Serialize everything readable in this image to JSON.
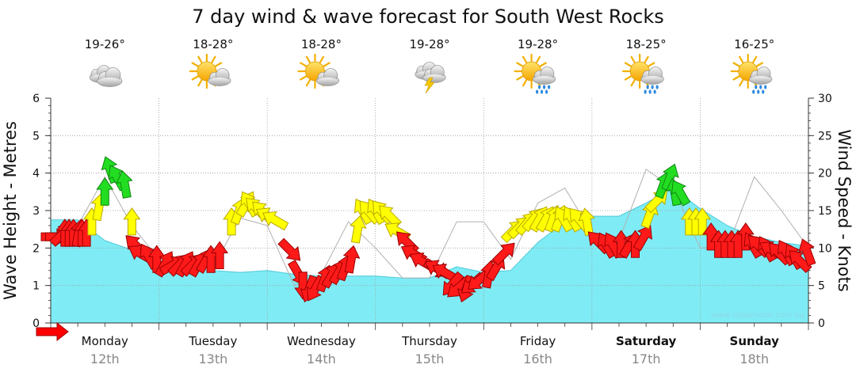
{
  "chart_data": {
    "type": "area",
    "title": "7 day wind & wave forecast for South West Rocks",
    "ylabel": "Wave Height - Metres",
    "y2label": "Wind Speed - Knots",
    "ylim": [
      0,
      6
    ],
    "y2lim": [
      0,
      30
    ],
    "y_ticks": [
      "0",
      "1",
      "2",
      "3",
      "4",
      "5",
      "6"
    ],
    "y2_ticks": [
      "0",
      "5",
      "10",
      "15",
      "20",
      "25",
      "30"
    ],
    "grid": true,
    "days": [
      {
        "day": "Monday",
        "date": "12th",
        "temp": "19-26°",
        "icon": "cloudy-icon",
        "bold": false
      },
      {
        "day": "Tuesday",
        "date": "13th",
        "temp": "18-28°",
        "icon": "sun-cloud-icon",
        "bold": false
      },
      {
        "day": "Wednesday",
        "date": "14th",
        "temp": "18-28°",
        "icon": "sun-cloud-icon",
        "bold": false
      },
      {
        "day": "Thursday",
        "date": "15th",
        "temp": "19-28°",
        "icon": "storm-icon",
        "bold": false
      },
      {
        "day": "Friday",
        "date": "16th",
        "temp": "19-28°",
        "icon": "sun-rain-icon",
        "bold": false
      },
      {
        "day": "Saturday",
        "date": "17th",
        "temp": "18-25°",
        "icon": "sun-rain-icon",
        "bold": true
      },
      {
        "day": "Sunday",
        "date": "18th",
        "temp": "16-25°",
        "icon": "sun-rain-icon",
        "bold": true
      }
    ],
    "series": [
      {
        "name": "Wave Height",
        "color": "#7fecf5",
        "axis": "left",
        "x": [
          0,
          0.25,
          0.5,
          0.75,
          1,
          1.25,
          1.5,
          1.75,
          2,
          2.25,
          2.5,
          2.75,
          3,
          3.25,
          3.5,
          3.75,
          4,
          4.25,
          4.5,
          4.75,
          5,
          5.25,
          5.5,
          5.75,
          6,
          6.25,
          6.5,
          6.75,
          7
        ],
        "values": [
          2.75,
          2.75,
          2.2,
          1.95,
          1.55,
          1.45,
          1.4,
          1.35,
          1.4,
          1.3,
          1.25,
          1.25,
          1.25,
          1.2,
          1.2,
          1.5,
          1.35,
          1.4,
          2.15,
          2.7,
          2.85,
          2.85,
          3.2,
          3.6,
          3.05,
          2.6,
          2.3,
          2.15,
          2.05
        ]
      },
      {
        "name": "Wind Speed",
        "color": "#b0b0b0",
        "axis": "right",
        "x": [
          0,
          0.25,
          0.5,
          0.75,
          1,
          1.25,
          1.5,
          1.75,
          2,
          2.25,
          2.5,
          2.75,
          3,
          3.25,
          3.5,
          3.75,
          4,
          4.25,
          4.5,
          4.75,
          5,
          5.25,
          5.5,
          5.75,
          6,
          6.25,
          6.5,
          6.75,
          7
        ],
        "values": [
          10.5,
          13,
          19.5,
          13,
          8.5,
          7,
          7.5,
          14,
          13,
          5,
          6.5,
          13.5,
          10,
          6,
          6,
          13.5,
          13.5,
          8.5,
          16,
          18,
          12,
          11,
          20.5,
          18,
          10,
          10,
          19.5,
          15,
          10
        ]
      }
    ],
    "wind_arrows": [
      {
        "x": 0.0,
        "speed": 11.5,
        "dir": 90
      },
      {
        "x": 0.04,
        "speed": 11.5,
        "dir": 90
      },
      {
        "x": 0.08,
        "speed": 11.5,
        "dir": 45
      },
      {
        "x": 0.13,
        "speed": 11.5,
        "dir": 0
      },
      {
        "x": 0.17,
        "speed": 11.5,
        "dir": 0
      },
      {
        "x": 0.21,
        "speed": 11.5,
        "dir": 0
      },
      {
        "x": 0.25,
        "speed": 11.5,
        "dir": 10
      },
      {
        "x": 0.29,
        "speed": 11.5,
        "dir": 0
      },
      {
        "x": 0.33,
        "speed": 11.5,
        "dir": 0
      },
      {
        "x": 0.38,
        "speed": 13,
        "dir": 0
      },
      {
        "x": 0.44,
        "speed": 15,
        "dir": 10
      },
      {
        "x": 0.5,
        "speed": 17,
        "dir": 0
      },
      {
        "x": 0.56,
        "speed": 20,
        "dir": 340
      },
      {
        "x": 0.63,
        "speed": 19,
        "dir": 330
      },
      {
        "x": 0.69,
        "speed": 18,
        "dir": 350
      },
      {
        "x": 0.75,
        "speed": 13,
        "dir": 0
      },
      {
        "x": 0.81,
        "speed": 10,
        "dir": 315
      },
      {
        "x": 0.86,
        "speed": 9,
        "dir": 300
      },
      {
        "x": 0.92,
        "speed": 8.5,
        "dir": 330
      },
      {
        "x": 0.98,
        "speed": 8,
        "dir": 0
      },
      {
        "x": 1.04,
        "speed": 7.5,
        "dir": 30
      },
      {
        "x": 1.1,
        "speed": 7.5,
        "dir": 60
      },
      {
        "x": 1.17,
        "speed": 7.5,
        "dir": 45
      },
      {
        "x": 1.23,
        "speed": 7.5,
        "dir": 30
      },
      {
        "x": 1.29,
        "speed": 7.5,
        "dir": 45
      },
      {
        "x": 1.35,
        "speed": 7.5,
        "dir": 30
      },
      {
        "x": 1.42,
        "speed": 8,
        "dir": 30
      },
      {
        "x": 1.48,
        "speed": 8,
        "dir": 0
      },
      {
        "x": 1.56,
        "speed": 8.5,
        "dir": 0
      },
      {
        "x": 1.67,
        "speed": 13,
        "dir": 0
      },
      {
        "x": 1.73,
        "speed": 14.5,
        "dir": 20
      },
      {
        "x": 1.79,
        "speed": 15.5,
        "dir": 30
      },
      {
        "x": 1.85,
        "speed": 15.5,
        "dir": 330
      },
      {
        "x": 1.92,
        "speed": 15,
        "dir": 315
      },
      {
        "x": 1.98,
        "speed": 14.5,
        "dir": 315
      },
      {
        "x": 2.04,
        "speed": 14,
        "dir": 300
      },
      {
        "x": 2.1,
        "speed": 13.5,
        "dir": 300
      },
      {
        "x": 2.19,
        "speed": 10,
        "dir": 135
      },
      {
        "x": 2.27,
        "speed": 7,
        "dir": 150
      },
      {
        "x": 2.33,
        "speed": 5.5,
        "dir": 180
      },
      {
        "x": 2.4,
        "speed": 5,
        "dir": 200
      },
      {
        "x": 2.46,
        "speed": 5,
        "dir": 210
      },
      {
        "x": 2.52,
        "speed": 5.5,
        "dir": 20
      },
      {
        "x": 2.58,
        "speed": 6,
        "dir": 30
      },
      {
        "x": 2.65,
        "speed": 6.5,
        "dir": 30
      },
      {
        "x": 2.71,
        "speed": 7,
        "dir": 20
      },
      {
        "x": 2.77,
        "speed": 8,
        "dir": 10
      },
      {
        "x": 2.83,
        "speed": 12,
        "dir": 10
      },
      {
        "x": 2.9,
        "speed": 14.5,
        "dir": 330
      },
      {
        "x": 2.96,
        "speed": 14.5,
        "dir": 320
      },
      {
        "x": 3.02,
        "speed": 14.5,
        "dir": 330
      },
      {
        "x": 3.08,
        "speed": 14.5,
        "dir": 320
      },
      {
        "x": 3.15,
        "speed": 14,
        "dir": 315
      },
      {
        "x": 3.23,
        "speed": 12,
        "dir": 300
      },
      {
        "x": 3.31,
        "speed": 10.5,
        "dir": 315
      },
      {
        "x": 3.38,
        "speed": 9,
        "dir": 300
      },
      {
        "x": 3.46,
        "speed": 8,
        "dir": 300
      },
      {
        "x": 3.54,
        "speed": 7.5,
        "dir": 120
      },
      {
        "x": 3.6,
        "speed": 7,
        "dir": 300
      },
      {
        "x": 3.67,
        "speed": 6.5,
        "dir": 300
      },
      {
        "x": 3.73,
        "speed": 5.5,
        "dir": 220
      },
      {
        "x": 3.79,
        "speed": 5,
        "dir": 230
      },
      {
        "x": 3.85,
        "speed": 5,
        "dir": 200
      },
      {
        "x": 3.92,
        "speed": 5.5,
        "dir": 230
      },
      {
        "x": 3.98,
        "speed": 6,
        "dir": 230
      },
      {
        "x": 4.04,
        "speed": 6,
        "dir": 10
      },
      {
        "x": 4.1,
        "speed": 7,
        "dir": 30
      },
      {
        "x": 4.17,
        "speed": 9,
        "dir": 45
      },
      {
        "x": 4.25,
        "speed": 12,
        "dir": 45
      },
      {
        "x": 4.31,
        "speed": 12.5,
        "dir": 45
      },
      {
        "x": 4.38,
        "speed": 13,
        "dir": 40
      },
      {
        "x": 4.44,
        "speed": 13.5,
        "dir": 40
      },
      {
        "x": 4.5,
        "speed": 13.5,
        "dir": 30
      },
      {
        "x": 4.56,
        "speed": 13.5,
        "dir": 30
      },
      {
        "x": 4.63,
        "speed": 13.5,
        "dir": 20
      },
      {
        "x": 4.69,
        "speed": 13.5,
        "dir": 20
      },
      {
        "x": 4.75,
        "speed": 13.5,
        "dir": 330
      },
      {
        "x": 4.83,
        "speed": 13.5,
        "dir": 330
      },
      {
        "x": 4.9,
        "speed": 13.5,
        "dir": 320
      },
      {
        "x": 4.96,
        "speed": 13,
        "dir": 350
      },
      {
        "x": 5.08,
        "speed": 10.5,
        "dir": 315
      },
      {
        "x": 5.15,
        "speed": 10,
        "dir": 330
      },
      {
        "x": 5.21,
        "speed": 10,
        "dir": 330
      },
      {
        "x": 5.27,
        "speed": 10,
        "dir": 0
      },
      {
        "x": 5.33,
        "speed": 10,
        "dir": 30
      },
      {
        "x": 5.4,
        "speed": 10,
        "dir": 0
      },
      {
        "x": 5.46,
        "speed": 11,
        "dir": 30
      },
      {
        "x": 5.52,
        "speed": 14,
        "dir": 20
      },
      {
        "x": 5.58,
        "speed": 16,
        "dir": 45
      },
      {
        "x": 5.65,
        "speed": 18,
        "dir": 20
      },
      {
        "x": 5.71,
        "speed": 19,
        "dir": 20
      },
      {
        "x": 5.77,
        "speed": 17,
        "dir": 350
      },
      {
        "x": 5.83,
        "speed": 17,
        "dir": 330
      },
      {
        "x": 5.9,
        "speed": 13,
        "dir": 0
      },
      {
        "x": 5.96,
        "speed": 13,
        "dir": 0
      },
      {
        "x": 6.02,
        "speed": 13,
        "dir": 0
      },
      {
        "x": 6.1,
        "speed": 11,
        "dir": 0
      },
      {
        "x": 6.17,
        "speed": 10,
        "dir": 0
      },
      {
        "x": 6.23,
        "speed": 10,
        "dir": 0
      },
      {
        "x": 6.29,
        "speed": 10,
        "dir": 0
      },
      {
        "x": 6.35,
        "speed": 10,
        "dir": 0
      },
      {
        "x": 6.42,
        "speed": 11,
        "dir": 0
      },
      {
        "x": 6.5,
        "speed": 10,
        "dir": 330
      },
      {
        "x": 6.56,
        "speed": 10,
        "dir": 315
      },
      {
        "x": 6.63,
        "speed": 9.5,
        "dir": 330
      },
      {
        "x": 6.69,
        "speed": 9.5,
        "dir": 300
      },
      {
        "x": 6.75,
        "speed": 9,
        "dir": 315
      },
      {
        "x": 6.81,
        "speed": 9,
        "dir": 330
      },
      {
        "x": 6.88,
        "speed": 8.5,
        "dir": 330
      },
      {
        "x": 6.94,
        "speed": 8,
        "dir": 315
      },
      {
        "x": 7.0,
        "speed": 9,
        "dir": 340
      }
    ],
    "wind_arrows_note": "",
    "watermark": "www.seabreeze.com.au",
    "legend_arrow_color": "#ff0000"
  }
}
